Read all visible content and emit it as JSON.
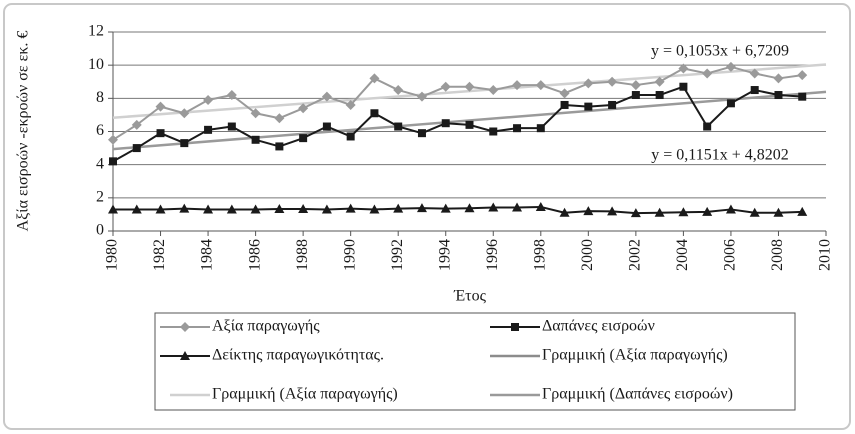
{
  "chart_data": {
    "type": "line",
    "y_label": "Αξία εισροών -εκροών σε εκ. €",
    "x_label": "Έτος",
    "x": [
      1980,
      1981,
      1982,
      1983,
      1984,
      1985,
      1986,
      1987,
      1988,
      1989,
      1990,
      1991,
      1992,
      1993,
      1994,
      1995,
      1996,
      1997,
      1998,
      1999,
      2000,
      2001,
      2002,
      2003,
      2004,
      2005,
      2006,
      2007,
      2008,
      2009
    ],
    "series": [
      {
        "name": "Αξία παραγωγής",
        "color": "#9a9a9a",
        "marker": "diamond",
        "values": [
          5.5,
          6.4,
          7.5,
          7.1,
          7.9,
          8.2,
          7.1,
          6.8,
          7.4,
          8.1,
          7.6,
          9.2,
          8.5,
          8.1,
          8.7,
          8.7,
          8.5,
          8.8,
          8.8,
          8.3,
          8.9,
          9.0,
          8.8,
          9.0,
          9.8,
          9.5,
          9.9,
          9.5,
          9.2,
          9.4
        ]
      },
      {
        "name": "Δαπάνες εισροών",
        "color": "#1a1a1a",
        "marker": "square",
        "values": [
          4.2,
          5.0,
          5.9,
          5.3,
          6.1,
          6.3,
          5.5,
          5.1,
          5.6,
          6.3,
          5.7,
          7.1,
          6.3,
          5.9,
          6.5,
          6.4,
          6.0,
          6.2,
          6.2,
          7.6,
          7.5,
          7.6,
          8.2,
          8.2,
          8.7,
          6.3,
          7.7,
          8.5,
          8.2,
          8.1
        ]
      },
      {
        "name": "Δείκτης παραγωγικότητας.",
        "color": "#1a1a1a",
        "marker": "triangle",
        "values": [
          1.3,
          1.3,
          1.3,
          1.35,
          1.3,
          1.3,
          1.3,
          1.33,
          1.33,
          1.3,
          1.35,
          1.3,
          1.35,
          1.38,
          1.35,
          1.37,
          1.42,
          1.42,
          1.45,
          1.1,
          1.2,
          1.18,
          1.08,
          1.1,
          1.13,
          1.15,
          1.3,
          1.1,
          1.1,
          1.15
        ]
      }
    ],
    "trendlines": [
      {
        "name": "Γραμμική (Αξία παραγωγής)",
        "color": "#8c8c8c"
      },
      {
        "name": "Γραμμική (Αξία παραγωγής)",
        "color": "#d0d0d0",
        "x": [
          1980,
          2010
        ],
        "values": [
          6.83,
          10.04
        ]
      },
      {
        "name": "Γραμμική (Δαπάνες εισροών)",
        "color": "#9a9a9a",
        "x": [
          1980,
          2010
        ],
        "values": [
          4.94,
          8.39
        ]
      }
    ],
    "annotations": [
      "y = 0,1053x + 6,7209",
      "y = 0,1151x + 4,8202"
    ],
    "xlim": [
      1980,
      2010
    ],
    "xticks": [
      1980,
      1982,
      1984,
      1986,
      1988,
      1990,
      1992,
      1994,
      1996,
      1998,
      2000,
      2002,
      2004,
      2006,
      2008,
      2010
    ],
    "ylim": [
      0,
      12
    ],
    "yticks": [
      0,
      2,
      4,
      6,
      8,
      10,
      12
    ],
    "grid": true
  }
}
